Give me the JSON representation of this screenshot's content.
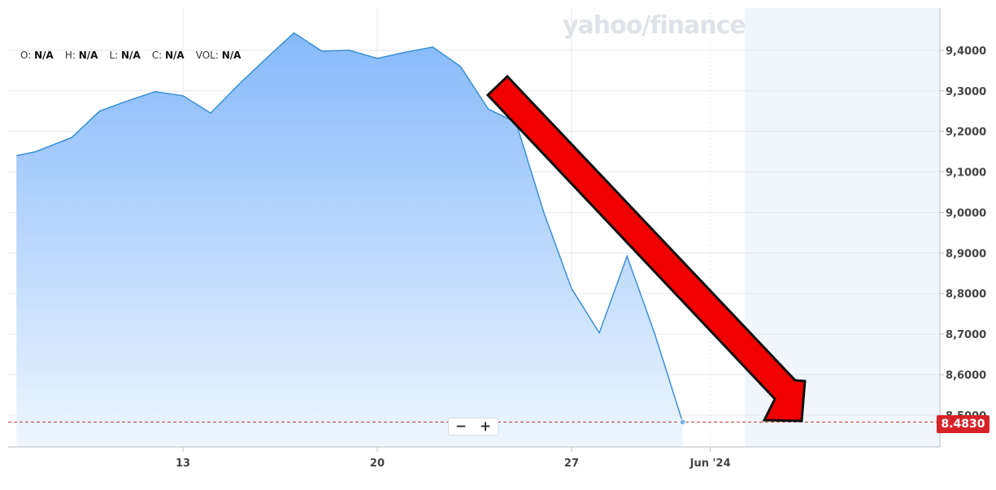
{
  "watermark": "yahoo/finance",
  "ohlc": [
    {
      "key": "O:",
      "value": "N/A"
    },
    {
      "key": "H:",
      "value": "N/A"
    },
    {
      "key": "L:",
      "value": "N/A"
    },
    {
      "key": "C:",
      "value": "N/A"
    },
    {
      "key": "VOL:",
      "value": "N/A"
    }
  ],
  "zoom": {
    "minus": "−",
    "plus": "+"
  },
  "colors": {
    "line": "#3a8fd6",
    "fill_top": "#8cbdfa",
    "fill_bottom": "#e9f3fe",
    "badge": "#d62328",
    "arrow": "#e60000",
    "grid": "#e3e7ec",
    "dashed": "#c0392b"
  },
  "chart_data": {
    "type": "area",
    "title": "",
    "xlabel": "",
    "ylabel": "",
    "ylim": [
      8.42,
      9.54
    ],
    "y_ticks": [
      "9,4000",
      "9,3000",
      "9,2000",
      "9,1000",
      "9,0000",
      "8,9000",
      "8,8000",
      "8,7000",
      "8,6000",
      "8,5000"
    ],
    "y_tick_values": [
      9.4,
      9.3,
      9.2,
      9.1,
      9.0,
      8.9,
      8.8,
      8.7,
      8.6,
      8.5
    ],
    "x_ticks": [
      {
        "label": "13",
        "day": 13
      },
      {
        "label": "20",
        "day": 20
      },
      {
        "label": "27",
        "day": 27
      },
      {
        "label": "Jun '24",
        "day": 32
      }
    ],
    "series": [
      {
        "values": [
          {
            "day": 7.0,
            "y": 9.14
          },
          {
            "day": 7.7,
            "y": 9.15
          },
          {
            "day": 9.0,
            "y": 9.185
          },
          {
            "day": 10.0,
            "y": 9.25
          },
          {
            "day": 11.0,
            "y": 9.275
          },
          {
            "day": 12.0,
            "y": 9.298
          },
          {
            "day": 13.0,
            "y": 9.288
          },
          {
            "day": 14.0,
            "y": 9.245
          },
          {
            "day": 15.0,
            "y": 9.315
          },
          {
            "day": 16.0,
            "y": 9.38
          },
          {
            "day": 17.0,
            "y": 9.443
          },
          {
            "day": 18.0,
            "y": 9.398
          },
          {
            "day": 19.0,
            "y": 9.4
          },
          {
            "day": 20.0,
            "y": 9.38
          },
          {
            "day": 21.0,
            "y": 9.395
          },
          {
            "day": 22.0,
            "y": 9.408
          },
          {
            "day": 23.0,
            "y": 9.36
          },
          {
            "day": 24.0,
            "y": 9.255
          },
          {
            "day": 25.0,
            "y": 9.222
          },
          {
            "day": 26.0,
            "y": 9.0
          },
          {
            "day": 27.0,
            "y": 8.812
          },
          {
            "day": 28.0,
            "y": 8.703
          },
          {
            "day": 29.0,
            "y": 8.892
          },
          {
            "day": 30.0,
            "y": 8.7
          },
          {
            "day": 31.0,
            "y": 8.483
          }
        ]
      }
    ],
    "last_price": "8.4830",
    "last_value": 8.483,
    "grid": true,
    "annotation": "red downward arrow"
  }
}
